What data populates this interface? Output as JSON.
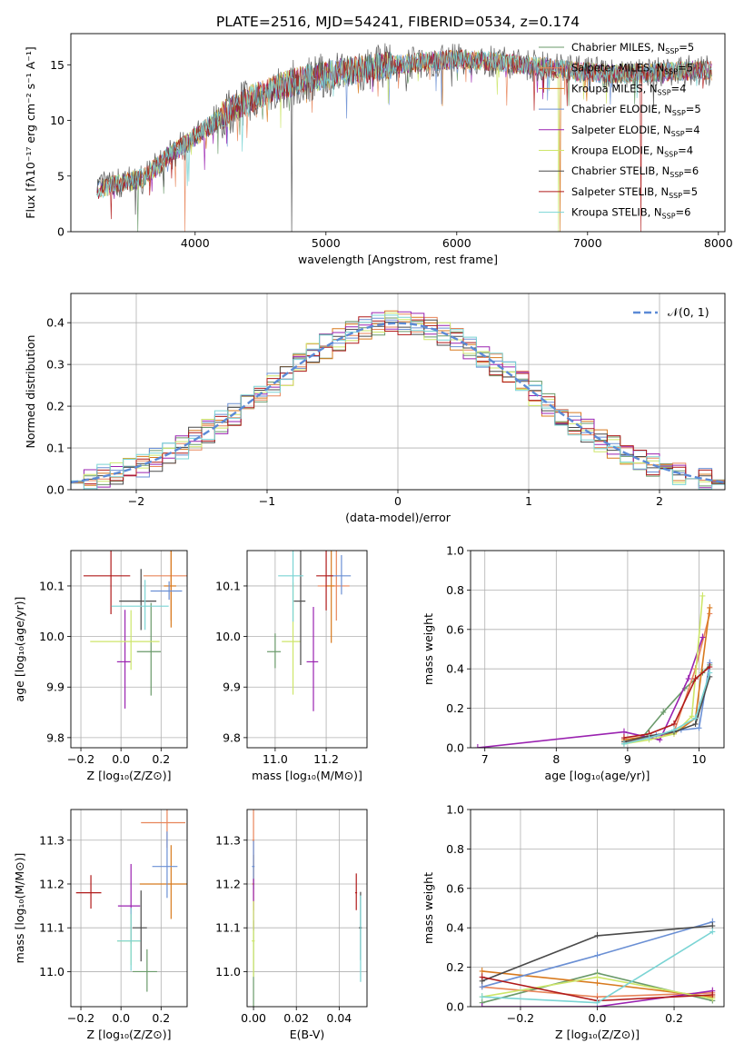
{
  "title": "PLATE=2516, MJD=54241, FIBERID=0534, z=0.174",
  "colors": [
    "#6a9a6a",
    "#e8855a",
    "#d87a1e",
    "#6a8fd4",
    "#9a22b0",
    "#cde66a",
    "#4a4a4a",
    "#b01a1a",
    "#7ad4d4"
  ],
  "spectrum": {
    "xlabel": "wavelength [Angstrom, rest frame]",
    "ylabel": "Flux [fλ10⁻¹⁷ erg cm⁻² s⁻¹ A⁻¹]",
    "xticks": [
      4000,
      5000,
      6000,
      7000,
      8000
    ],
    "yticks": [
      0,
      5,
      10,
      15
    ],
    "legend": [
      "Chabrier MILES, N_SSP=5",
      "Salpeter MILES, N_SSP=5",
      "Kroupa MILES, N_SSP=4",
      "Chabrier ELODIE, N_SSP=5",
      "Salpeter ELODIE, N_SSP=4",
      "Kroupa ELODIE, N_SSP=4",
      "Chabrier STELIB, N_SSP=6",
      "Salpeter STELIB, N_SSP=5",
      "Kroupa STELIB, N_SSP=6"
    ]
  },
  "histogram": {
    "xlabel": "(data-model)/error",
    "ylabel": "Normed distribution",
    "xticks": [
      "−2",
      "−1",
      "0",
      "1",
      "2"
    ],
    "yticks": [
      "0.0",
      "0.1",
      "0.2",
      "0.3",
      "0.4"
    ],
    "legend": "𝒩(0, 1)"
  },
  "panels": {
    "age_z": {
      "xlabel": "Z [log₁₀(Z/Z⊙)]",
      "ylabel": "age  [log₁₀(age/yr)]",
      "xticks": [
        "−0.2",
        "0.0",
        "0.2"
      ],
      "yticks": [
        "9.8",
        "9.9",
        "10.0",
        "10.1"
      ]
    },
    "age_mass": {
      "xlabel": "mass [log₁₀(M/M⊙)]",
      "xticks": [
        "11.0",
        "11.2"
      ],
      "yticks": [
        "9.8",
        "9.9",
        "10.0",
        "10.1"
      ]
    },
    "mw_age": {
      "xlabel": "age  [log₁₀(age/yr)]",
      "ylabel": "mass weight",
      "xticks": [
        "7",
        "8",
        "9",
        "10"
      ],
      "yticks": [
        "0.0",
        "0.2",
        "0.4",
        "0.6",
        "0.8",
        "1.0"
      ]
    },
    "mass_z": {
      "xlabel": "Z [log₁₀(Z/Z⊙)]",
      "ylabel": "mass [log₁₀(M/M⊙)]",
      "xticks": [
        "−0.2",
        "0.0",
        "0.2"
      ],
      "yticks": [
        "11.0",
        "11.1",
        "11.2",
        "11.3"
      ]
    },
    "mass_ebv": {
      "xlabel": "E(B-V)",
      "xticks": [
        "0.00",
        "0.02",
        "0.04"
      ],
      "yticks": [
        "11.0",
        "11.1",
        "11.2",
        "11.3"
      ]
    },
    "mw_z": {
      "xlabel": "Z [log₁₀(Z/Z⊙)]",
      "ylabel": "mass weight",
      "xticks": [
        "−0.2",
        "0.0",
        "0.2"
      ],
      "yticks": [
        "0.0",
        "0.2",
        "0.4",
        "0.6",
        "0.8",
        "1.0"
      ]
    }
  },
  "chart_data": [
    {
      "type": "line",
      "title": "PLATE=2516, MJD=54241, FIBERID=0534, z=0.174",
      "xlabel": "wavelength [Angstrom, rest frame]",
      "ylabel": "Flux [fλ10⁻¹⁷ erg cm⁻² s⁻¹ A⁻¹]",
      "xlim": [
        3050,
        8050
      ],
      "ylim": [
        0,
        17.8
      ],
      "x": [
        3250,
        3400,
        3600,
        3800,
        4000,
        4200,
        4500,
        4800,
        5100,
        5400,
        5700,
        6000,
        6300,
        6600,
        6900,
        7200,
        7500,
        7800
      ],
      "y": [
        3.8,
        4.3,
        4.8,
        6.8,
        8.5,
        10.4,
        12.4,
        13.6,
        14.3,
        14.8,
        15.2,
        15.5,
        15.3,
        14.9,
        14.4,
        14.2,
        14.3,
        14.5
      ],
      "series": [
        {
          "name": "Chabrier MILES, N_SSP=5"
        },
        {
          "name": "Salpeter MILES, N_SSP=5"
        },
        {
          "name": "Kroupa MILES, N_SSP=4"
        },
        {
          "name": "Chabrier ELODIE, N_SSP=5"
        },
        {
          "name": "Salpeter ELODIE, N_SSP=4"
        },
        {
          "name": "Kroupa ELODIE, N_SSP=4"
        },
        {
          "name": "Chabrier STELIB, N_SSP=6"
        },
        {
          "name": "Salpeter STELIB, N_SSP=5"
        },
        {
          "name": "Kroupa STELIB, N_SSP=6"
        }
      ],
      "grid": false,
      "legend": "top-right"
    },
    {
      "type": "line",
      "xlabel": "(data-model)/error",
      "ylabel": "Normed distribution",
      "xlim": [
        -2.5,
        2.5
      ],
      "ylim": [
        0,
        0.47
      ],
      "x": [
        -2.5,
        -2.0,
        -1.5,
        -1.0,
        -0.5,
        0.0,
        0.5,
        1.0,
        1.5,
        2.0,
        2.5
      ],
      "y": [
        0.02,
        0.05,
        0.13,
        0.24,
        0.35,
        0.4,
        0.35,
        0.24,
        0.13,
        0.05,
        0.02
      ],
      "series": [
        {
          "name": "𝒩(0, 1)"
        }
      ],
      "grid": true,
      "legend": "top-right"
    },
    {
      "type": "scatter",
      "xlabel": "Z [log₁₀(Z/Z⊙)]",
      "ylabel": "age  [log₁₀(age/yr)]",
      "xlim": [
        -0.25,
        0.33
      ],
      "ylim": [
        9.78,
        10.17
      ],
      "points": [
        [
          0.15,
          9.97
        ],
        [
          0.25,
          10.12
        ],
        [
          0.25,
          10.1
        ],
        [
          0.24,
          10.09
        ],
        [
          0.02,
          9.95
        ],
        [
          0.05,
          9.99
        ],
        [
          0.1,
          10.07
        ],
        [
          -0.05,
          10.12
        ],
        [
          0.12,
          10.06
        ]
      ],
      "grid": true
    },
    {
      "type": "scatter",
      "xlabel": "mass [log₁₀(M/M⊙)]",
      "xlim": [
        10.89,
        11.36
      ],
      "ylim": [
        9.78,
        10.17
      ],
      "points": [
        [
          11.0,
          9.97
        ],
        [
          11.24,
          10.1
        ],
        [
          11.22,
          10.1
        ],
        [
          11.26,
          10.12
        ],
        [
          11.15,
          9.95
        ],
        [
          11.07,
          9.99
        ],
        [
          11.1,
          10.07
        ],
        [
          11.2,
          10.12
        ],
        [
          11.07,
          10.12
        ]
      ],
      "grid": true
    },
    {
      "type": "line",
      "xlabel": "age  [log₁₀(age/yr)]",
      "ylabel": "mass weight",
      "xlim": [
        6.8,
        10.35
      ],
      "ylim": [
        0,
        1
      ],
      "series": [
        {
          "x": [
            8.95,
            9.2,
            9.5,
            9.8,
            10.05,
            10.15
          ],
          "y": [
            0.02,
            0.05,
            0.18,
            0.3,
            0.38,
            0.42
          ]
        },
        {
          "x": [
            8.95,
            9.3,
            9.65,
            9.95,
            10.15
          ],
          "y": [
            0.03,
            0.05,
            0.08,
            0.4,
            0.68
          ]
        },
        {
          "x": [
            8.95,
            9.3,
            9.65,
            9.95,
            10.15
          ],
          "y": [
            0.04,
            0.06,
            0.07,
            0.15,
            0.71
          ]
        },
        {
          "x": [
            8.95,
            9.4,
            9.75,
            10.0,
            10.15
          ],
          "y": [
            0.02,
            0.06,
            0.09,
            0.1,
            0.43
          ]
        },
        {
          "x": [
            6.9,
            8.95,
            9.45,
            9.85,
            10.05
          ],
          "y": [
            0.0,
            0.08,
            0.04,
            0.35,
            0.56
          ]
        },
        {
          "x": [
            8.95,
            9.3,
            9.65,
            9.9,
            10.05
          ],
          "y": [
            0.02,
            0.04,
            0.07,
            0.16,
            0.77
          ]
        },
        {
          "x": [
            8.95,
            9.3,
            9.65,
            9.95,
            10.15
          ],
          "y": [
            0.03,
            0.06,
            0.08,
            0.12,
            0.36
          ]
        },
        {
          "x": [
            8.95,
            9.3,
            9.65,
            9.95,
            10.15
          ],
          "y": [
            0.05,
            0.07,
            0.12,
            0.35,
            0.41
          ]
        },
        {
          "x": [
            8.95,
            9.3,
            9.65,
            9.95,
            10.15
          ],
          "y": [
            0.02,
            0.05,
            0.09,
            0.15,
            0.38
          ]
        }
      ],
      "grid": true
    },
    {
      "type": "scatter",
      "xlabel": "Z [log₁₀(Z/Z⊙)]",
      "ylabel": "mass [log₁₀(M/M⊙)]",
      "xlim": [
        -0.25,
        0.33
      ],
      "ylim": [
        10.92,
        11.37
      ],
      "points": [
        [
          0.13,
          11.0
        ],
        [
          0.23,
          11.34
        ],
        [
          0.25,
          11.2
        ],
        [
          0.23,
          11.24
        ],
        [
          0.05,
          11.15
        ],
        [
          0.05,
          11.07
        ],
        [
          0.1,
          11.1
        ],
        [
          -0.15,
          11.18
        ],
        [
          0.05,
          11.07
        ]
      ],
      "grid": true
    },
    {
      "type": "scatter",
      "xlabel": "E(B-V)",
      "xlim": [
        -0.003,
        0.053
      ],
      "ylim": [
        10.92,
        11.37
      ],
      "points": [
        [
          0.0,
          11.0
        ],
        [
          0.0,
          11.3
        ],
        [
          0.0,
          11.2
        ],
        [
          0.0,
          11.24
        ],
        [
          0.0,
          11.15
        ],
        [
          0.0,
          11.07
        ],
        [
          0.05,
          11.1
        ],
        [
          0.048,
          11.18
        ],
        [
          0.05,
          11.07
        ]
      ],
      "grid": true
    },
    {
      "type": "line",
      "xlabel": "Z [log₁₀(Z/Z⊙)]",
      "ylabel": "mass weight",
      "xlim": [
        -0.33,
        0.33
      ],
      "ylim": [
        0,
        1
      ],
      "series": [
        {
          "x": [
            -0.3,
            0.0,
            0.3
          ],
          "y": [
            0.02,
            0.17,
            0.03
          ]
        },
        {
          "x": [
            -0.3,
            0.0,
            0.3
          ],
          "y": [
            0.1,
            0.05,
            0.07
          ]
        },
        {
          "x": [
            -0.3,
            0.0,
            0.3
          ],
          "y": [
            0.18,
            0.12,
            0.05
          ]
        },
        {
          "x": [
            -0.3,
            0.0,
            0.3
          ],
          "y": [
            0.1,
            0.26,
            0.43
          ]
        },
        {
          "x": [
            -0.3,
            0.0,
            0.3
          ],
          "y": [
            0.0,
            0.0,
            0.08
          ]
        },
        {
          "x": [
            -0.3,
            0.0,
            0.3
          ],
          "y": [
            0.05,
            0.15,
            0.04
          ]
        },
        {
          "x": [
            -0.3,
            0.0,
            0.3
          ],
          "y": [
            0.13,
            0.36,
            0.41
          ]
        },
        {
          "x": [
            -0.3,
            0.0,
            0.3
          ],
          "y": [
            0.15,
            0.03,
            0.06
          ]
        },
        {
          "x": [
            -0.3,
            0.0,
            0.3
          ],
          "y": [
            0.05,
            0.02,
            0.38
          ]
        }
      ],
      "grid": true
    }
  ]
}
